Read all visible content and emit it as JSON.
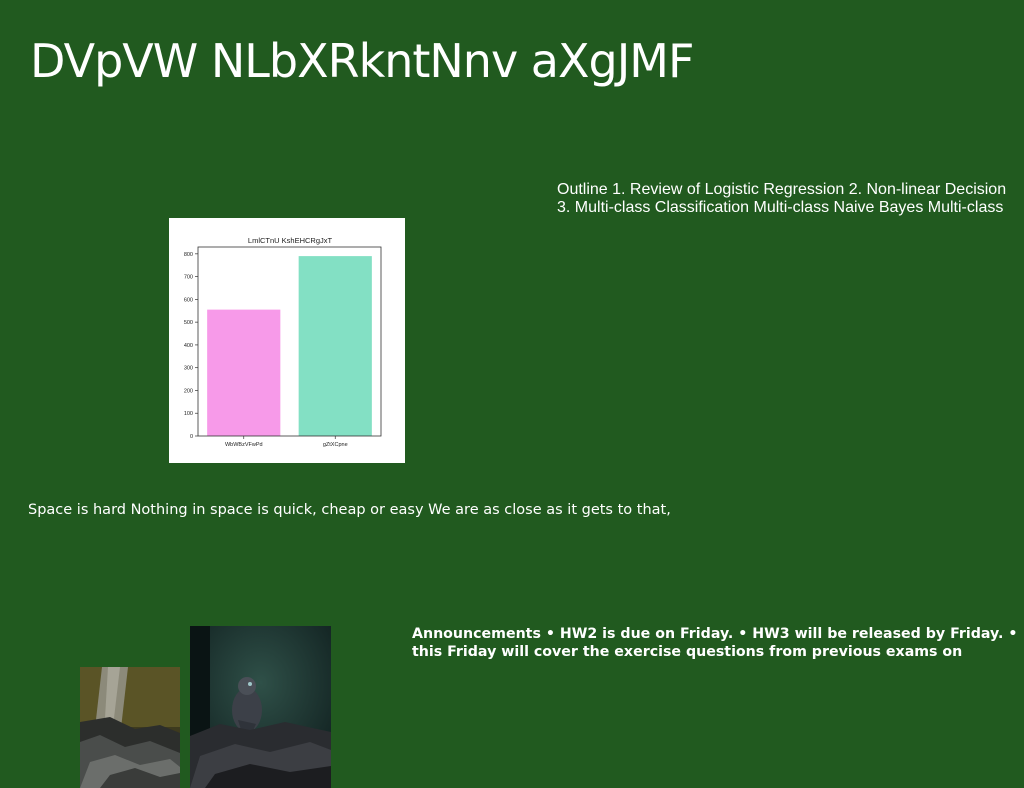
{
  "slide": {
    "title": "DVpVW NLbXRkntNnv aXgJMF",
    "outline_lines": [
      "Outline 1. Review of Logistic Regression 2. Non-linear Decision",
      "3. Multi-class Classification Multi-class Naive Bayes Multi-class"
    ],
    "caption": "Space is hard Nothing in space is quick, cheap or easy We are as close as it gets to that,",
    "announcement_lines": [
      "Announcements • HW2 is due on Friday. • HW3 will be released by Friday. •",
      "this Friday will cover the exercise questions from previous exams on"
    ]
  },
  "chart_data": {
    "type": "bar",
    "title": "LmlCTnU KshEHCRgJxT",
    "categories": [
      "WbWBzVFwPd",
      "gZtXCpne"
    ],
    "values": [
      555,
      790
    ],
    "colors": [
      "#f79ae9",
      "#83e0c4"
    ],
    "ylim": [
      0,
      830
    ],
    "yticks": [
      0,
      100,
      200,
      300,
      400,
      500,
      600,
      700,
      800
    ],
    "xlabel": "",
    "ylabel": "",
    "grid": false
  }
}
